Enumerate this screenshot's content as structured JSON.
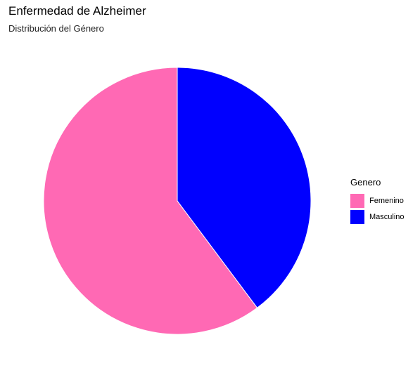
{
  "chart_data": {
    "type": "pie",
    "title": "Enfermedad de Alzheimer",
    "subtitle": "Distribución del Género",
    "legend": {
      "title": "Genero",
      "placement": "right"
    },
    "slices": [
      {
        "label": "Femenino",
        "value": 60.2,
        "color": "#ff69b4"
      },
      {
        "label": "Masculino",
        "value": 39.8,
        "color": "#0000ff"
      }
    ]
  }
}
